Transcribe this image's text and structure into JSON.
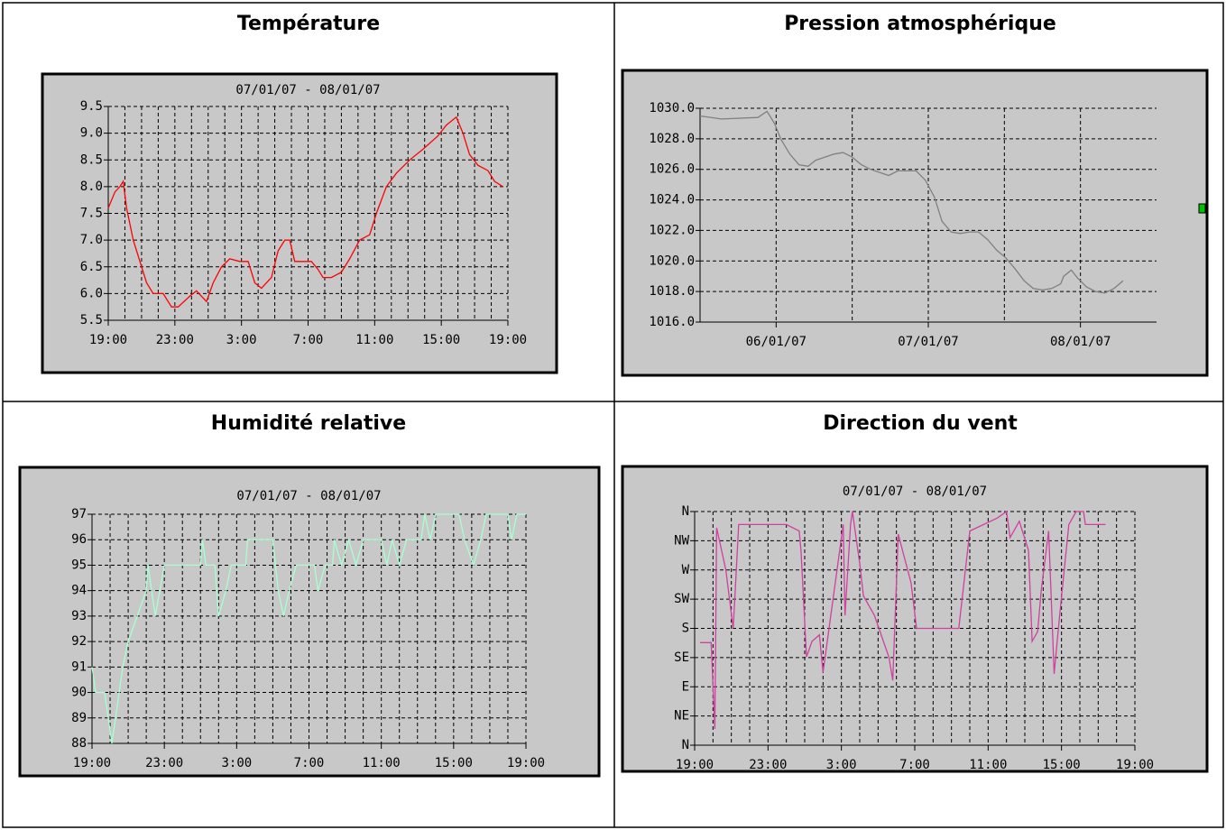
{
  "chart_data": [
    {
      "type": "line",
      "title": "Température",
      "subtitle": "07/01/07 - 08/01/07",
      "color": "#ff0000",
      "grid": true,
      "xlim": [
        0,
        24
      ],
      "xticks": [
        {
          "value": 0,
          "label": "19:00"
        },
        {
          "value": 4,
          "label": "23:00"
        },
        {
          "value": 8,
          "label": "3:00"
        },
        {
          "value": 12,
          "label": "7:00"
        },
        {
          "value": 16,
          "label": "11:00"
        },
        {
          "value": 20,
          "label": "15:00"
        },
        {
          "value": 24,
          "label": "19:00"
        }
      ],
      "ylim": [
        5.5,
        9.5
      ],
      "yticks": [
        5.5,
        {
          "value": 6,
          "label": "6.0"
        },
        6.5,
        {
          "value": 7,
          "label": "7.0"
        },
        7.5,
        {
          "value": 8,
          "label": "8.0"
        },
        8.5,
        {
          "value": 9,
          "label": "9.0"
        },
        9.5
      ],
      "x": [
        0,
        0.4,
        0.7,
        0.9,
        1.1,
        1.5,
        1.9,
        2.3,
        2.7,
        3.3,
        3.8,
        4.2,
        4.9,
        5.3,
        5.9,
        6.3,
        6.8,
        7.3,
        7.9,
        8.4,
        8.8,
        9.2,
        9.8,
        10.2,
        10.6,
        10.9,
        11.2,
        11.7,
        12.2,
        12.6,
        12.9,
        13.4,
        14.0,
        14.5,
        15.1,
        15.7,
        16.1,
        16.7,
        17.3,
        18.1,
        18.9,
        19.8,
        20.3,
        20.9,
        21.3,
        21.7,
        22.2,
        22.8,
        23.2,
        23.7
      ],
      "values": [
        7.6,
        7.9,
        8.0,
        8.1,
        7.6,
        7.0,
        6.6,
        6.2,
        6.0,
        6.0,
        5.75,
        5.75,
        5.95,
        6.05,
        5.85,
        6.2,
        6.5,
        6.65,
        6.6,
        6.6,
        6.2,
        6.1,
        6.3,
        6.8,
        7.0,
        7.0,
        6.6,
        6.6,
        6.6,
        6.45,
        6.3,
        6.3,
        6.4,
        6.65,
        7.0,
        7.1,
        7.5,
        8.0,
        8.25,
        8.5,
        8.7,
        8.95,
        9.15,
        9.3,
        9.0,
        8.6,
        8.4,
        8.3,
        8.1,
        8.0
      ]
    },
    {
      "type": "line",
      "title": "Pression atmosphérique",
      "color": "#808080",
      "grid": true,
      "xlim": [
        0,
        3
      ],
      "xticks": [
        {
          "value": 0.5,
          "label": "06/01/07"
        },
        {
          "value": 1.5,
          "label": "07/01/07"
        },
        {
          "value": 2.5,
          "label": "08/01/07"
        }
      ],
      "ylim": [
        1016,
        1030
      ],
      "yticks": [
        {
          "value": 1016,
          "label": "1016.0"
        },
        {
          "value": 1018,
          "label": "1018.0"
        },
        {
          "value": 1020,
          "label": "1020.0"
        },
        {
          "value": 1022,
          "label": "1022.0"
        },
        {
          "value": 1024,
          "label": "1024.0"
        },
        {
          "value": 1026,
          "label": "1026.0"
        },
        {
          "value": 1028,
          "label": "1028.0"
        },
        {
          "value": 1030,
          "label": "1030.0"
        }
      ],
      "x": [
        0,
        0.14,
        0.38,
        0.44,
        0.49,
        0.53,
        0.59,
        0.65,
        0.71,
        0.76,
        0.82,
        0.88,
        0.94,
        1.0,
        1.06,
        1.12,
        1.18,
        1.24,
        1.3,
        1.36,
        1.42,
        1.48,
        1.54,
        1.59,
        1.65,
        1.71,
        1.77,
        1.83,
        1.89,
        1.95,
        2.01,
        2.07,
        2.13,
        2.19,
        2.25,
        2.31,
        2.37,
        2.39,
        2.44,
        2.48,
        2.54,
        2.6,
        2.66,
        2.72,
        2.78
      ],
      "values": [
        1029.5,
        1029.3,
        1029.4,
        1029.8,
        1029.0,
        1028.0,
        1027.0,
        1026.3,
        1026.2,
        1026.6,
        1026.8,
        1027.0,
        1027.1,
        1026.8,
        1026.3,
        1026.0,
        1025.8,
        1025.6,
        1025.9,
        1025.9,
        1025.9,
        1025.3,
        1024.2,
        1022.6,
        1021.9,
        1021.8,
        1021.9,
        1021.9,
        1021.4,
        1020.7,
        1020.2,
        1019.5,
        1018.7,
        1018.2,
        1018.1,
        1018.2,
        1018.5,
        1019.0,
        1019.4,
        1018.9,
        1018.3,
        1018.0,
        1017.9,
        1018.2,
        1018.7
      ]
    },
    {
      "type": "line",
      "title": "Humidité relative",
      "subtitle": "07/01/07 - 08/01/07",
      "color": "#a8ffd0",
      "grid": true,
      "xlim": [
        0,
        24
      ],
      "xticks": [
        {
          "value": 0,
          "label": "19:00"
        },
        {
          "value": 4,
          "label": "23:00"
        },
        {
          "value": 8,
          "label": "3:00"
        },
        {
          "value": 12,
          "label": "7:00"
        },
        {
          "value": 16,
          "label": "11:00"
        },
        {
          "value": 20,
          "label": "15:00"
        },
        {
          "value": 24,
          "label": "19:00"
        }
      ],
      "ylim": [
        88,
        97
      ],
      "yticks": [
        88,
        89,
        90,
        91,
        92,
        93,
        94,
        95,
        96,
        97
      ],
      "x": [
        0,
        0.2,
        0.7,
        0.9,
        1.1,
        1.3,
        1.5,
        1.7,
        2.0,
        2.5,
        3.0,
        3.1,
        3.5,
        4.0,
        6.0,
        6.1,
        6.3,
        6.8,
        7.0,
        7.4,
        7.7,
        8.5,
        8.6,
        10.0,
        10.3,
        10.6,
        10.9,
        11.3,
        12.3,
        12.5,
        12.9,
        13.3,
        13.4,
        13.8,
        14.2,
        14.6,
        15.0,
        16.0,
        16.3,
        16.6,
        17.0,
        17.4,
        18.2,
        18.4,
        18.7,
        19.0,
        20.3,
        20.6,
        21.1,
        21.5,
        21.8,
        23.0,
        23.2,
        23.5,
        24
      ],
      "values": [
        91,
        90,
        90,
        89,
        88,
        89,
        90,
        91,
        92,
        93,
        94,
        95,
        93,
        95,
        95,
        96,
        95,
        95,
        93,
        94,
        95,
        95,
        96,
        96,
        94,
        93,
        94,
        95,
        95,
        94,
        95,
        95,
        96,
        95,
        96,
        95,
        96,
        96,
        95,
        96,
        95,
        96,
        96,
        97,
        96,
        97,
        97,
        96,
        95,
        96,
        97,
        97,
        96,
        97,
        97
      ]
    },
    {
      "type": "line",
      "title": "Direction du vent",
      "subtitle": "07/01/07 - 08/01/07",
      "color": "#d040a0",
      "grid": true,
      "xlim": [
        0,
        24
      ],
      "xticks": [
        {
          "value": 0,
          "label": "19:00"
        },
        {
          "value": 4,
          "label": "23:00"
        },
        {
          "value": 8,
          "label": "3:00"
        },
        {
          "value": 12,
          "label": "7:00"
        },
        {
          "value": 16,
          "label": "11:00"
        },
        {
          "value": 20,
          "label": "15:00"
        },
        {
          "value": 24,
          "label": "19:00"
        }
      ],
      "ylim": [
        0,
        360
      ],
      "yticks": [
        {
          "value": 0,
          "label": "N"
        },
        {
          "value": 45,
          "label": "NE"
        },
        {
          "value": 90,
          "label": "E"
        },
        {
          "value": 135,
          "label": "SE"
        },
        {
          "value": 180,
          "label": "S"
        },
        {
          "value": 225,
          "label": "SW"
        },
        {
          "value": 270,
          "label": "W"
        },
        {
          "value": 315,
          "label": "NW"
        },
        {
          "value": 360,
          "label": "N"
        }
      ],
      "x": [
        0.3,
        0.9,
        1.1,
        1.2,
        1.7,
        2.1,
        2.2,
        2.4,
        5.0,
        5.7,
        5.8,
        6.1,
        6.4,
        6.8,
        7.0,
        8.1,
        8.2,
        8.5,
        8.6,
        8.8,
        9.0,
        9.2,
        9.8,
        10.6,
        10.8,
        11.1,
        11.8,
        12.1,
        14.4,
        15.0,
        16.5,
        17.0,
        17.2,
        17.7,
        18.2,
        18.4,
        18.7,
        18.9,
        19.3,
        19.6,
        19.9,
        20.4,
        20.8,
        21.2,
        21.3,
        22.4
      ],
      "values": [
        158,
        158,
        25,
        335,
        270,
        180,
        230,
        340,
        340,
        330,
        300,
        136,
        160,
        170,
        112,
        340,
        200,
        340,
        360,
        320,
        280,
        230,
        200,
        135,
        100,
        325,
        250,
        180,
        180,
        330,
        350,
        360,
        320,
        345,
        300,
        160,
        175,
        240,
        330,
        110,
        200,
        340,
        360,
        360,
        340,
        340
      ]
    }
  ]
}
